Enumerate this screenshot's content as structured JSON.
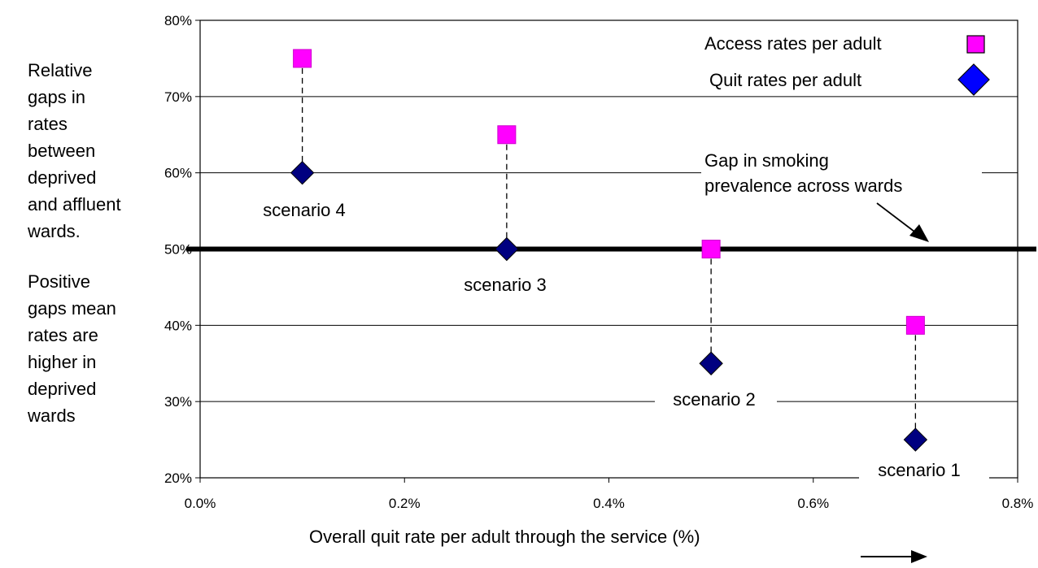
{
  "chart_data": {
    "type": "scatter",
    "xlabel": "Overall quit rate per adult through the service (%)",
    "x_ticks": [
      "0.0%",
      "0.2%",
      "0.4%",
      "0.6%",
      "0.8%"
    ],
    "y_ticks": [
      "20%",
      "30%",
      "40%",
      "50%",
      "60%",
      "70%",
      "80%"
    ],
    "xlim": [
      0,
      0.8
    ],
    "ylim": [
      20,
      80
    ],
    "grid": "horizontal",
    "legend_position": "top-right",
    "series": [
      {
        "name": "Access rates per adult",
        "marker": "square",
        "color": "#ff00ff",
        "points": [
          {
            "x": 0.1,
            "y": 75
          },
          {
            "x": 0.3,
            "y": 65
          },
          {
            "x": 0.5,
            "y": 50
          },
          {
            "x": 0.7,
            "y": 40
          }
        ]
      },
      {
        "name": "Quit rates per adult",
        "marker": "diamond",
        "color": "#000080",
        "legend_color": "#0000ff",
        "points": [
          {
            "x": 0.1,
            "y": 60
          },
          {
            "x": 0.3,
            "y": 50
          },
          {
            "x": 0.5,
            "y": 35
          },
          {
            "x": 0.7,
            "y": 25
          }
        ]
      }
    ],
    "scenario_labels": [
      "scenario 4",
      "scenario 3",
      "scenario 2",
      "scenario 1"
    ],
    "reference_line": {
      "y": 50,
      "label_line1": "Gap in smoking",
      "label_line2": "prevalence across wards"
    },
    "side_notes": {
      "top": "Relative\ngaps in\nrates\nbetween\ndeprived\nand affluent\nwards.",
      "bottom": "Positive\ngaps mean\nrates are\nhigher in\ndeprived\nwards"
    }
  }
}
